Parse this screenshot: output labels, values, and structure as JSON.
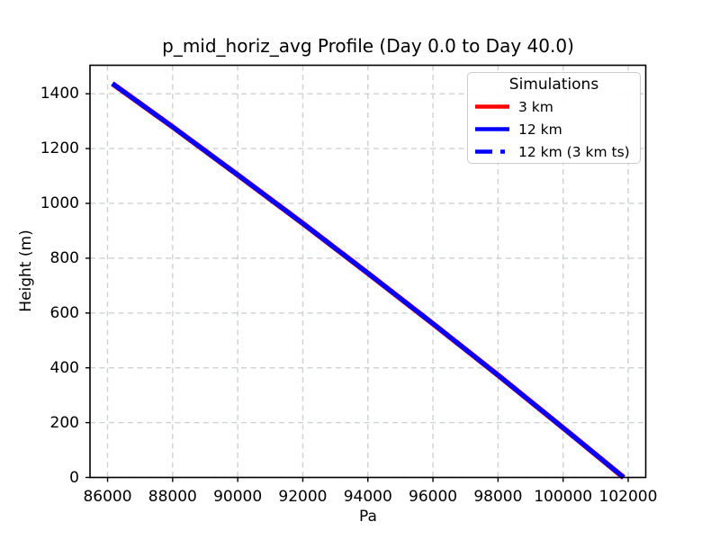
{
  "figure": {
    "background": "#ffffff"
  },
  "chart_data": {
    "type": "line",
    "title": "p_mid_horiz_avg Profile (Day 0.0 to Day 40.0)",
    "xlabel": "Pa",
    "ylabel": "Height (m)",
    "xlim": [
      85460,
      102540
    ],
    "ylim": [
      0,
      1504
    ],
    "xticks": [
      86000,
      88000,
      90000,
      92000,
      94000,
      96000,
      98000,
      100000,
      102000
    ],
    "yticks": [
      0,
      200,
      400,
      600,
      800,
      1000,
      1200,
      1400
    ],
    "grid": {
      "visible": true,
      "linestyle": "dashed",
      "color": "#cdd2d2"
    },
    "legend": {
      "title": "Simulations",
      "location": "upper right",
      "entries": [
        {
          "label": "3 km",
          "color": "#ff0000",
          "linestyle": "solid"
        },
        {
          "label": "12 km",
          "color": "#0000ff",
          "linestyle": "solid"
        },
        {
          "label": "12 km (3 km ts)",
          "color": "#0000ff",
          "linestyle": "dashed"
        }
      ]
    },
    "series": [
      {
        "name": "3 km",
        "color": "#ff0000",
        "linestyle": "solid",
        "linewidth": 6,
        "points": [
          [
            86150,
            1437
          ],
          [
            88000,
            1279
          ],
          [
            90000,
            1104
          ],
          [
            92000,
            927
          ],
          [
            94000,
            745
          ],
          [
            96000,
            561
          ],
          [
            98000,
            373
          ],
          [
            100000,
            181
          ],
          [
            101860,
            0
          ]
        ]
      },
      {
        "name": "12 km",
        "color": "#0000ff",
        "linestyle": "solid",
        "linewidth": 5,
        "points": [
          [
            86150,
            1437
          ],
          [
            88000,
            1279
          ],
          [
            90000,
            1104
          ],
          [
            92000,
            927
          ],
          [
            94000,
            745
          ],
          [
            96000,
            561
          ],
          [
            98000,
            373
          ],
          [
            100000,
            181
          ],
          [
            101860,
            0
          ]
        ]
      },
      {
        "name": "12 km (3 km ts)",
        "color": "#0000ff",
        "linestyle": "dashed",
        "linewidth": 5,
        "points": [
          [
            86150,
            1437
          ],
          [
            88000,
            1279
          ],
          [
            90000,
            1104
          ],
          [
            92000,
            927
          ],
          [
            94000,
            745
          ],
          [
            96000,
            561
          ],
          [
            98000,
            373
          ],
          [
            100000,
            181
          ],
          [
            101860,
            0
          ]
        ]
      }
    ]
  }
}
